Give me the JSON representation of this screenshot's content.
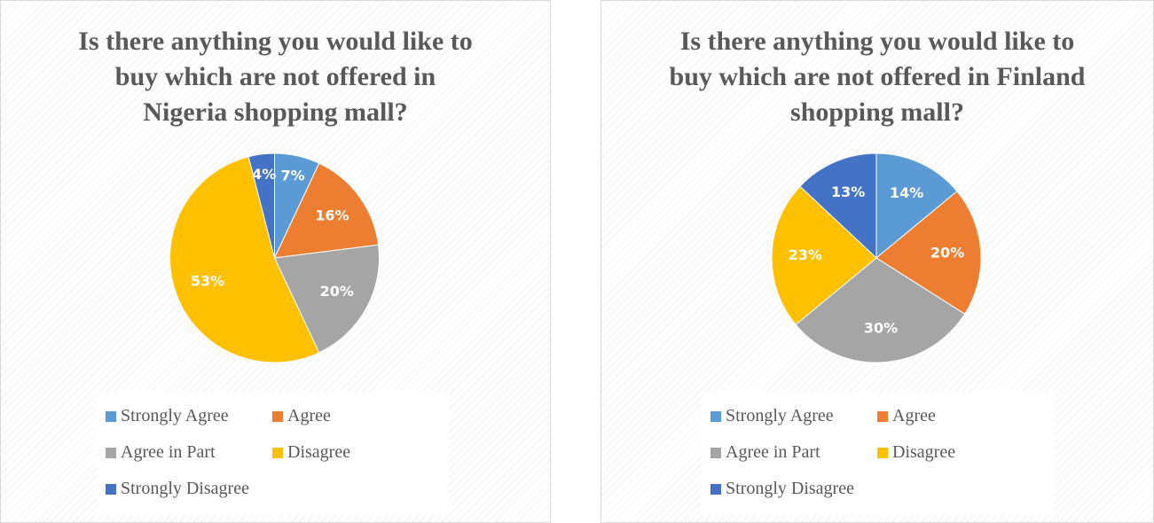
{
  "chart_data": [
    {
      "type": "pie",
      "title": "Is there anything you would like to buy which are not offered in Nigeria shopping mall?",
      "categories": [
        "Strongly Agree",
        "Agree",
        "Agree in Part",
        "Disagree",
        "Strongly Disagree"
      ],
      "values": [
        7,
        16,
        20,
        53,
        4
      ],
      "value_labels": [
        "7%",
        "16%",
        "20%",
        "53%",
        "4%"
      ],
      "colors": [
        "#5b9bd5",
        "#ed7d31",
        "#a5a5a5",
        "#ffc000",
        "#4472c4"
      ]
    },
    {
      "type": "pie",
      "title": "Is there anything you would like to buy which are not offered in Finland shopping mall?",
      "categories": [
        "Strongly Agree",
        "Agree",
        "Agree in Part",
        "Disagree",
        "Strongly Disagree"
      ],
      "values": [
        14,
        20,
        30,
        23,
        13
      ],
      "value_labels": [
        "14%",
        "20%",
        "30%",
        "23%",
        "13%"
      ],
      "colors": [
        "#5b9bd5",
        "#ed7d31",
        "#a5a5a5",
        "#ffc000",
        "#4472c4"
      ]
    }
  ]
}
